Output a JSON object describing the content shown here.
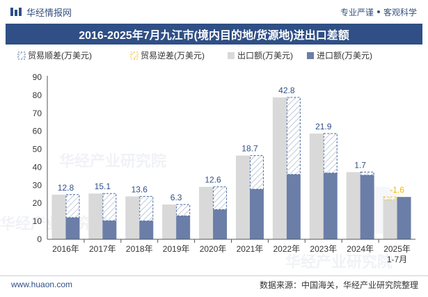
{
  "header": {
    "brand": "华经情报网",
    "tagline_left": "专业严谨",
    "tagline_right": "客观科学"
  },
  "title": "2016-2025年7月九江市(境内目的地/货源地)进出口差额",
  "legend": {
    "surplus": "贸易顺差(万美元)",
    "deficit": "贸易逆差(万美元)",
    "export": "出口额(万美元)",
    "import": "进口额(万美元)"
  },
  "colors": {
    "export": "#d9d9d9",
    "import": "#6b7ea8",
    "surplus_stroke": "#4a6aa0",
    "deficit_stroke": "#f2c12e",
    "label_surplus": "#2f4f86",
    "label_deficit": "#f5b800",
    "title_bg": "#2f4f86"
  },
  "chart_data": {
    "type": "bar",
    "categories": [
      "2016年",
      "2017年",
      "2018年",
      "2019年",
      "2020年",
      "2021年",
      "2022年",
      "2023年",
      "2024年",
      "2025年\n1-7月"
    ],
    "series": [
      {
        "name": "出口额(万美元)",
        "values": [
          24.8,
          25.4,
          23.8,
          19.3,
          29.1,
          46.5,
          78.8,
          58.7,
          37.3,
          21.9
        ]
      },
      {
        "name": "进口额(万美元)",
        "values": [
          12.0,
          10.3,
          10.2,
          13.0,
          16.5,
          27.8,
          36.0,
          36.8,
          35.6,
          23.5
        ]
      }
    ],
    "balance": [
      12.8,
      15.1,
      13.6,
      6.3,
      12.6,
      18.7,
      42.8,
      21.9,
      1.7,
      -1.6
    ],
    "balance_labels": [
      "12.8",
      "15.1",
      "13.6",
      "6.3",
      "12.6",
      "18.7",
      "42.8",
      "21.9",
      "1.7",
      "-1.6"
    ],
    "ylim": [
      0,
      90
    ],
    "yticks": [
      0,
      10,
      20,
      30,
      40,
      50,
      60,
      70,
      80,
      90
    ],
    "legend_position": "top-left"
  },
  "watermark": "华经产业研究院",
  "footer": {
    "site": "www.huaon.com",
    "source": "数据来源：中国海关，华经产业研究院整理"
  }
}
